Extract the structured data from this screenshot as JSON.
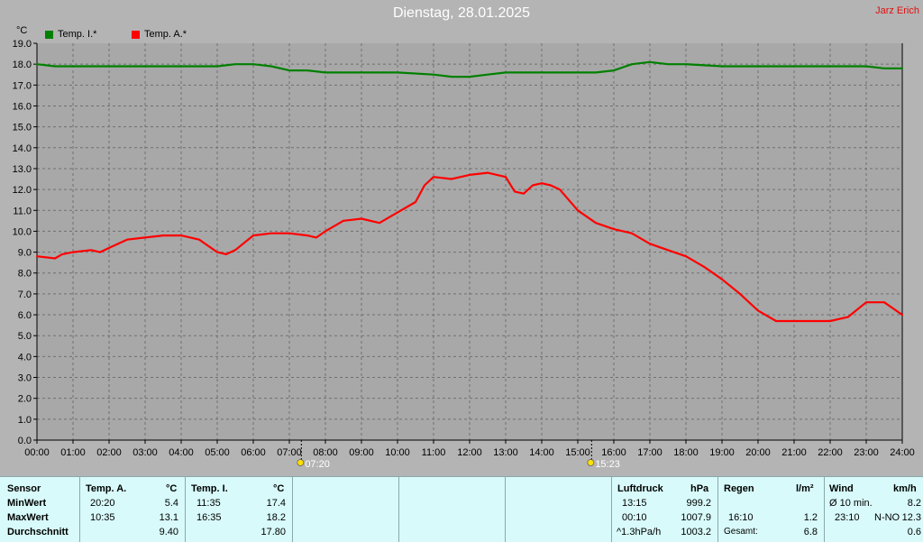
{
  "header": {
    "title": "Dienstag, 28.01.2025",
    "credit": "Jarz Erich"
  },
  "chart_data": {
    "type": "line",
    "unit": "°C",
    "ylim": [
      0,
      19
    ],
    "yticks": [
      "0.0",
      "1.0",
      "2.0",
      "3.0",
      "4.0",
      "5.0",
      "6.0",
      "7.0",
      "8.0",
      "9.0",
      "10.0",
      "11.0",
      "12.0",
      "13.0",
      "14.0",
      "15.0",
      "16.0",
      "17.0",
      "18.0",
      "19.0"
    ],
    "xlim": [
      0,
      24
    ],
    "xticks": [
      "00:00",
      "01:00",
      "02:00",
      "03:00",
      "04:00",
      "05:00",
      "06:00",
      "07:00",
      "08:00",
      "09:00",
      "10:00",
      "11:00",
      "12:00",
      "13:00",
      "14:00",
      "15:00",
      "16:00",
      "17:00",
      "18:00",
      "19:00",
      "20:00",
      "21:00",
      "22:00",
      "23:00",
      "24:00"
    ],
    "grid": true,
    "legend_position": "top-left",
    "colors": {
      "inside": "#008000",
      "outside": "#ff0000",
      "plot_bg": "#a8a8a8"
    },
    "series": [
      {
        "name": "Temp. I.*",
        "color": "#008000",
        "x": [
          0,
          0.5,
          1,
          2,
          3,
          4,
          5,
          5.5,
          6,
          6.5,
          7,
          7.5,
          8,
          9,
          10,
          11,
          11.5,
          12,
          12.5,
          13,
          13.5,
          14,
          15,
          15.5,
          16,
          16.5,
          17,
          17.5,
          18,
          19,
          20,
          21,
          22,
          23,
          23.5,
          24
        ],
        "y": [
          18.0,
          17.9,
          17.9,
          17.9,
          17.9,
          17.9,
          17.9,
          18.0,
          18.0,
          17.9,
          17.7,
          17.7,
          17.6,
          17.6,
          17.6,
          17.5,
          17.4,
          17.4,
          17.5,
          17.6,
          17.6,
          17.6,
          17.6,
          17.6,
          17.7,
          18.0,
          18.1,
          18.0,
          18.0,
          17.9,
          17.9,
          17.9,
          17.9,
          17.9,
          17.8,
          17.8
        ]
      },
      {
        "name": "Temp. A.*",
        "color": "#ff0000",
        "x": [
          0,
          0.5,
          0.7,
          1,
          1.5,
          1.75,
          2,
          2.5,
          3,
          3.5,
          4,
          4.5,
          5,
          5.25,
          5.5,
          6,
          6.5,
          7,
          7.5,
          7.75,
          8,
          8.5,
          9,
          9.5,
          10,
          10.5,
          10.75,
          11,
          11.5,
          12,
          12.5,
          13,
          13.25,
          13.5,
          13.75,
          14,
          14.25,
          14.5,
          15,
          15.5,
          16,
          16.5,
          17,
          17.5,
          18,
          18.5,
          19,
          19.5,
          20,
          20.5,
          21,
          21.5,
          22,
          22.5,
          23,
          23.5,
          24
        ],
        "y": [
          8.8,
          8.7,
          8.9,
          9.0,
          9.1,
          9.0,
          9.2,
          9.6,
          9.7,
          9.8,
          9.8,
          9.6,
          9.0,
          8.9,
          9.1,
          9.8,
          9.9,
          9.9,
          9.8,
          9.7,
          10.0,
          10.5,
          10.6,
          10.4,
          10.9,
          11.4,
          12.2,
          12.6,
          12.5,
          12.7,
          12.8,
          12.6,
          11.9,
          11.8,
          12.2,
          12.3,
          12.2,
          12.0,
          11.0,
          10.4,
          10.1,
          9.9,
          9.4,
          9.1,
          8.8,
          8.3,
          7.7,
          7.0,
          6.2,
          5.7,
          5.7,
          5.7,
          5.7,
          5.9,
          6.6,
          6.6,
          6.0
        ]
      }
    ],
    "markers": [
      {
        "label": "07:20",
        "x": 7.333
      },
      {
        "label": "15:23",
        "x": 15.383
      }
    ]
  },
  "table": {
    "sensor": {
      "header": "Sensor",
      "rows": [
        "MinWert",
        "MaxWert",
        "Durchschnitt"
      ]
    },
    "temp_a": {
      "header": "Temp. A.",
      "unit": "°C",
      "times": [
        "20:20",
        "10:35",
        ""
      ],
      "values": [
        "5.4",
        "13.1",
        "9.40"
      ]
    },
    "temp_i": {
      "header": "Temp. I.",
      "unit": "°C",
      "times": [
        "11:35",
        "16:35",
        ""
      ],
      "values": [
        "17.4",
        "18.2",
        "17.80"
      ]
    },
    "pressure": {
      "header": "Luftdruck",
      "unit": "hPa",
      "times": [
        "13:15",
        "00:10",
        "^1.3hPa/h"
      ],
      "values": [
        "999.2",
        "1007.9",
        "1003.2"
      ]
    },
    "rain": {
      "header": "Regen",
      "unit": "l/m²",
      "times": [
        "",
        "16:10",
        "Gesamt:"
      ],
      "values": [
        "",
        "1.2",
        "6.8"
      ]
    },
    "wind": {
      "header": "Wind",
      "unit": "km/h",
      "times": [
        "Ø 10 min.",
        "23:10",
        ""
      ],
      "dirs": [
        "",
        "N-NO",
        ""
      ],
      "values": [
        "8.2",
        "12.3",
        "0.6"
      ]
    }
  }
}
